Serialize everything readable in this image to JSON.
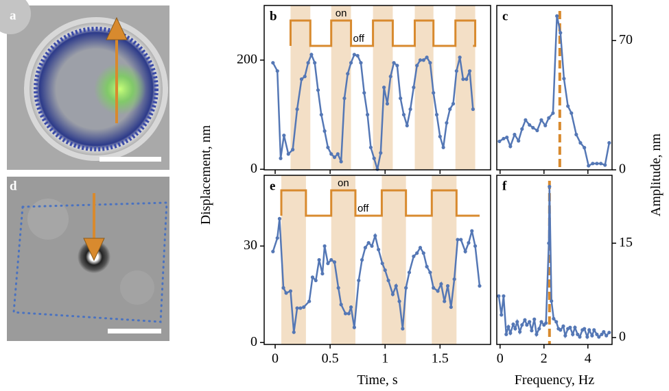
{
  "image_panels": [
    {
      "label": "a"
    },
    {
      "label": "d"
    }
  ],
  "chart_data": [
    {
      "type": "line",
      "label": "b",
      "ylabel": "Displacement, nm",
      "color": "#5477b5",
      "shade_color": "#f3dfc6",
      "wave_color": "#d88a2e",
      "annotations": [
        "on",
        "off"
      ],
      "on_intervals": [
        [
          0.14,
          0.32
        ],
        [
          0.51,
          0.69
        ],
        [
          0.89,
          1.07
        ],
        [
          1.27,
          1.44
        ],
        [
          1.64,
          1.82
        ]
      ],
      "x": [
        -0.02,
        0.02,
        0.05,
        0.08,
        0.12,
        0.16,
        0.2,
        0.24,
        0.27,
        0.3,
        0.33,
        0.36,
        0.39,
        0.42,
        0.45,
        0.48,
        0.51,
        0.54,
        0.57,
        0.6,
        0.63,
        0.66,
        0.69,
        0.72,
        0.75,
        0.78,
        0.81,
        0.84,
        0.87,
        0.9,
        0.93,
        0.96,
        0.99,
        1.02,
        1.05,
        1.08,
        1.11,
        1.14,
        1.17,
        1.2,
        1.23,
        1.26,
        1.29,
        1.32,
        1.35,
        1.38,
        1.41,
        1.44,
        1.47,
        1.5,
        1.53,
        1.56,
        1.59,
        1.62,
        1.65,
        1.68,
        1.71,
        1.74,
        1.77,
        1.8
      ],
      "values": [
        195,
        180,
        20,
        62,
        28,
        36,
        110,
        165,
        170,
        195,
        210,
        195,
        145,
        100,
        70,
        40,
        28,
        22,
        28,
        14,
        130,
        175,
        195,
        210,
        208,
        195,
        140,
        100,
        40,
        20,
        0,
        30,
        150,
        120,
        170,
        195,
        190,
        130,
        100,
        80,
        110,
        150,
        190,
        200,
        200,
        205,
        195,
        140,
        100,
        60,
        40,
        85,
        110,
        120,
        180,
        205,
        165,
        165,
        180,
        110
      ],
      "xlim": [
        -0.1,
        1.96
      ],
      "ylim": [
        -1,
        300
      ],
      "xticks": [
        0,
        0.5,
        1,
        1.5
      ],
      "xtick_labels": false,
      "yticks": [
        0,
        200
      ],
      "yaxis": "left"
    },
    {
      "type": "line",
      "label": "c",
      "ylabel": "Amplitude, nm",
      "color": "#5477b5",
      "ref_color": "#d88a2e",
      "ref_x": 2.72,
      "x": [
        -0.03,
        0.16,
        0.31,
        0.47,
        0.66,
        0.84,
        1.0,
        1.16,
        1.34,
        1.5,
        1.69,
        1.88,
        2.06,
        2.22,
        2.41,
        2.59,
        2.75,
        2.91,
        3.09,
        3.25,
        3.47,
        3.66,
        3.84,
        4.03,
        4.22,
        4.41,
        4.59,
        4.78,
        4.97
      ],
      "values": [
        15.4,
        16.9,
        17.6,
        12.7,
        19.1,
        15.7,
        22.1,
        27.0,
        24.3,
        22.8,
        21.3,
        27.0,
        24.0,
        28.1,
        30.7,
        83.3,
        74.2,
        49.4,
        34.5,
        30.7,
        19.1,
        14.6,
        12.0,
        2.2,
        3.4,
        3.4,
        3.4,
        2.6,
        14.6
      ],
      "xlim": [
        -0.15,
        5.1
      ],
      "ylim": [
        0,
        89
      ],
      "xticks": [
        0,
        2,
        4
      ],
      "xtick_labels": false,
      "yticks": [
        0,
        70
      ],
      "yaxis": "right"
    },
    {
      "type": "line",
      "label": "e",
      "xlabel": "Time, s",
      "color": "#5477b5",
      "shade_color": "#f3dfc6",
      "wave_color": "#d88a2e",
      "annotations": [
        "on",
        "off"
      ],
      "on_intervals": [
        [
          0.056,
          0.28
        ],
        [
          0.51,
          0.73
        ],
        [
          0.97,
          1.19
        ],
        [
          1.425,
          1.65
        ]
      ],
      "x": [
        -0.02,
        0.02,
        0.04,
        0.075,
        0.1,
        0.14,
        0.17,
        0.2,
        0.23,
        0.26,
        0.31,
        0.34,
        0.37,
        0.4,
        0.43,
        0.45,
        0.48,
        0.51,
        0.54,
        0.575,
        0.6,
        0.64,
        0.67,
        0.69,
        0.72,
        0.76,
        0.79,
        0.82,
        0.85,
        0.88,
        0.91,
        0.94,
        0.975,
        1.0,
        1.03,
        1.07,
        1.1,
        1.13,
        1.16,
        1.19,
        1.22,
        1.26,
        1.29,
        1.32,
        1.35,
        1.38,
        1.41,
        1.44,
        1.48,
        1.51,
        1.54,
        1.57,
        1.6,
        1.63,
        1.66,
        1.69,
        1.73,
        1.76,
        1.79,
        1.82,
        1.86
      ],
      "values": [
        28.3,
        32.5,
        38.5,
        17,
        15.4,
        16,
        3.2,
        10.7,
        10.7,
        11,
        12.8,
        20.3,
        19.3,
        25.7,
        21.4,
        30,
        24.6,
        25.7,
        25,
        17,
        11.8,
        9,
        9,
        11,
        4.7,
        19.3,
        25.7,
        29.5,
        31,
        30,
        33.2,
        28.9,
        24.6,
        22.5,
        19.3,
        15,
        17.6,
        12.8,
        4.3,
        17,
        21.8,
        26.8,
        27.8,
        29.5,
        27.8,
        23.6,
        21.8,
        17,
        16,
        18.2,
        12.8,
        17.6,
        11,
        19.7,
        32,
        32,
        28.3,
        31,
        34.7,
        30,
        17.6
      ],
      "xlim": [
        -0.1,
        1.96
      ],
      "ylim": [
        -0.6,
        52
      ],
      "xticks": [
        0,
        0.5,
        1,
        1.5
      ],
      "xtick_labels": true,
      "yticks": [
        0,
        30
      ],
      "yaxis": "left"
    },
    {
      "type": "line",
      "label": "f",
      "xlabel": "Frequency, Hz",
      "color": "#5477b5",
      "ref_color": "#d88a2e",
      "ref_x": 2.25,
      "x": [
        -0.06,
        0.06,
        0.16,
        0.28,
        0.38,
        0.47,
        0.6,
        0.69,
        0.78,
        0.9,
        1.0,
        1.13,
        1.22,
        1.34,
        1.44,
        1.56,
        1.66,
        1.78,
        1.88,
        2.0,
        2.09,
        2.22,
        2.25,
        2.34,
        2.44,
        2.56,
        2.66,
        2.75,
        2.88,
        2.97,
        3.09,
        3.19,
        3.31,
        3.41,
        3.53,
        3.63,
        3.75,
        3.84,
        3.97,
        4.06,
        4.19,
        4.28,
        4.41,
        4.5,
        4.63,
        4.72,
        4.84,
        4.97
      ],
      "values": [
        6.6,
        3.6,
        6.6,
        0.5,
        1.7,
        0.7,
        2.1,
        1.4,
        2.5,
        0.9,
        2.0,
        2.8,
        2.0,
        2.5,
        1.1,
        2.9,
        0.5,
        1.4,
        2.5,
        2.0,
        2.3,
        15.0,
        24.0,
        5.8,
        3.0,
        2.5,
        1.4,
        1.2,
        1.8,
        0.3,
        1.4,
        1.6,
        0.5,
        1.6,
        0.5,
        0.1,
        1.2,
        1.4,
        0.1,
        1.2,
        0.3,
        1.2,
        0.5,
        0.1,
        0.5,
        0.9,
        0.3,
        0.8
      ],
      "xlim": [
        -0.15,
        5.1
      ],
      "ylim": [
        -1.1,
        25.8
      ],
      "xticks": [
        0,
        2,
        4
      ],
      "xtick_labels": true,
      "yticks": [
        0,
        15
      ],
      "yaxis": "right"
    }
  ]
}
